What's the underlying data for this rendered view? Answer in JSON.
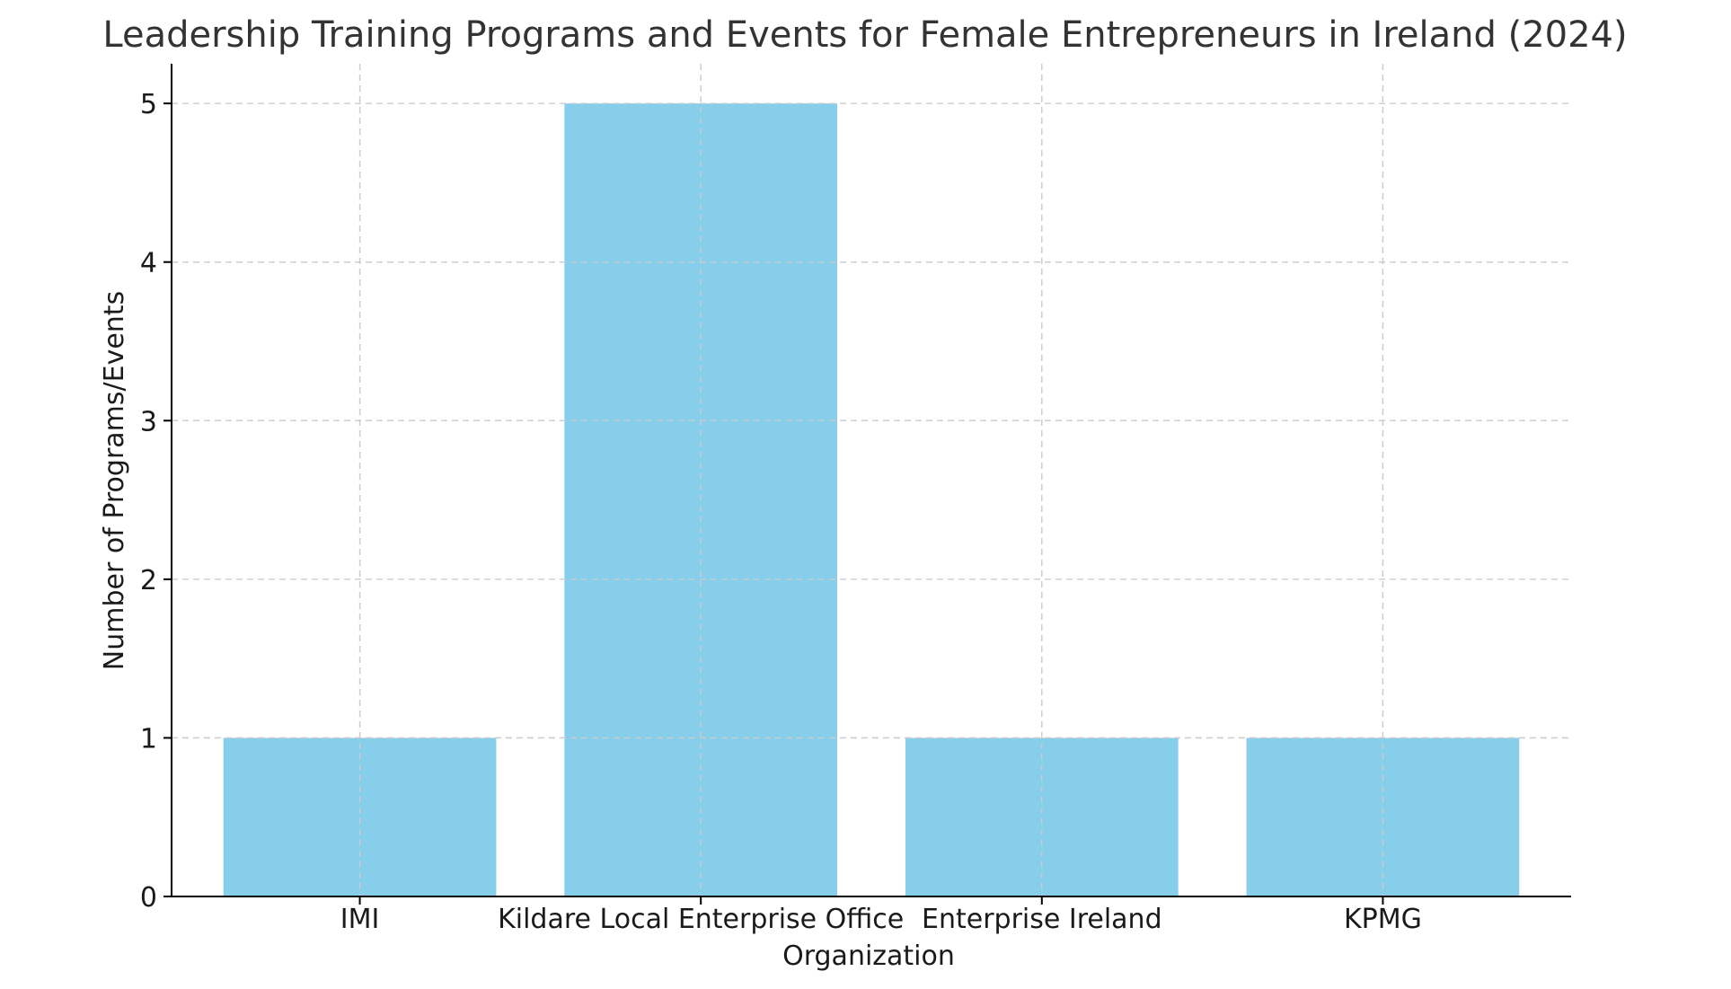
{
  "chart_data": {
    "type": "bar",
    "title": "Leadership Training Programs and Events for Female Entrepreneurs in Ireland (2024)",
    "xlabel": "Organization",
    "ylabel": "Number of Programs/Events",
    "categories": [
      "IMI",
      "Kildare Local Enterprise Office",
      "Enterprise Ireland",
      "KPMG"
    ],
    "values": [
      1,
      5,
      1,
      1
    ],
    "yticks": [
      "0",
      "1",
      "2",
      "3",
      "4",
      "5"
    ],
    "ylim": [
      0,
      5.25
    ],
    "grid": true,
    "bar_color": "#87CEEB"
  }
}
